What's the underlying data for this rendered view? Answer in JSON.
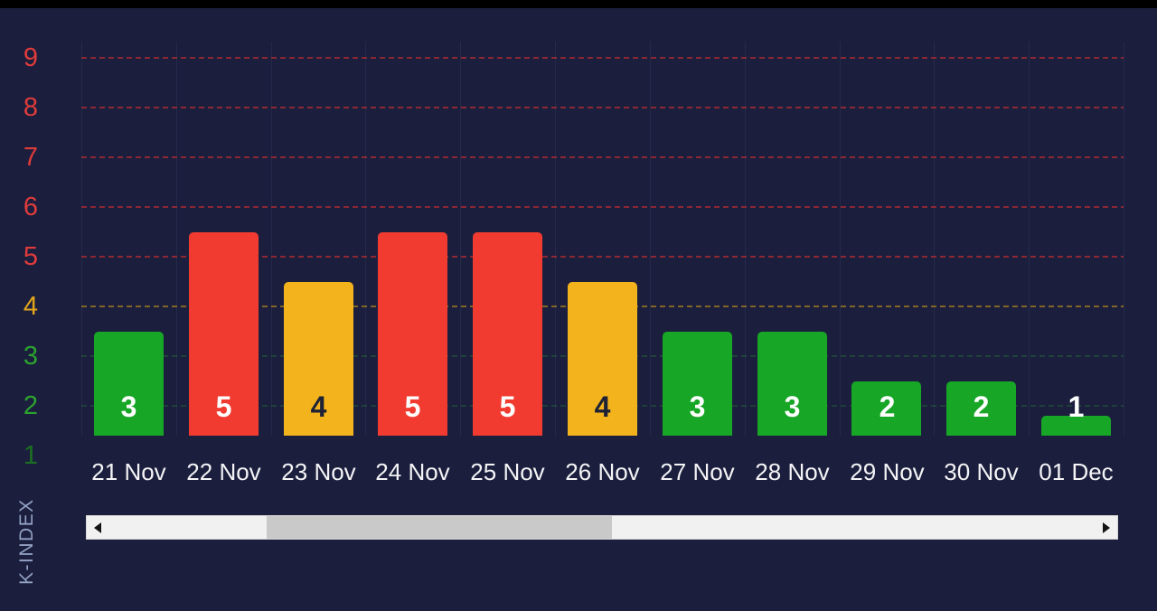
{
  "colors": {
    "background": "#1B1F3D",
    "bar_low": "#17A626",
    "bar_medium": "#F2B31C",
    "bar_high": "#F23B30",
    "value_label_light": "#FFFFFF",
    "value_label_dark": "#1E2235",
    "x_label": "#F4F4F6",
    "y_title": "#93A1C4"
  },
  "chart_data": {
    "type": "bar",
    "title": "",
    "ylabel": "K-INDEX",
    "categories": [
      "21 Nov",
      "22 Nov",
      "23 Nov",
      "24 Nov",
      "25 Nov",
      "26 Nov",
      "27 Nov",
      "28 Nov",
      "29 Nov",
      "30 Nov",
      "01 Dec"
    ],
    "values": [
      3,
      5,
      4,
      5,
      5,
      4,
      3,
      3,
      2,
      2,
      1
    ],
    "ylim": [
      0,
      9
    ],
    "grid": "horizontal-dashed",
    "legend": "none",
    "bar_color_by_value": {
      "1": "low",
      "2": "low",
      "3": "low",
      "4": "medium",
      "5": "high"
    },
    "yticks": [
      {
        "value": 9,
        "label": "9",
        "color": "#E13B3B",
        "grid": "rgba(216,44,44,0.6)"
      },
      {
        "value": 8,
        "label": "8",
        "color": "#E13B3B",
        "grid": "rgba(216,44,44,0.6)"
      },
      {
        "value": 7,
        "label": "7",
        "color": "#E13B3B",
        "grid": "rgba(216,44,44,0.6)"
      },
      {
        "value": 6,
        "label": "6",
        "color": "#E13B3B",
        "grid": "rgba(216,44,44,0.6)"
      },
      {
        "value": 5,
        "label": "5",
        "color": "#E13B3B",
        "grid": "rgba(216,44,44,0.6)"
      },
      {
        "value": 4,
        "label": "4",
        "color": "#E2A41B",
        "grid": "rgba(214,158,18,0.55)"
      },
      {
        "value": 3,
        "label": "3",
        "color": "#2BA32F",
        "grid": "rgba(40,160,45,0.28)"
      },
      {
        "value": 2,
        "label": "2",
        "color": "#2BA32F",
        "grid": "rgba(40,160,45,0.25)"
      },
      {
        "value": 1,
        "label": "1",
        "color": "#1C7022",
        "grid": ""
      }
    ]
  },
  "scrollbar": {
    "orientation": "horizontal",
    "thumb_left_pct": 16,
    "thumb_width_pct": 35
  }
}
